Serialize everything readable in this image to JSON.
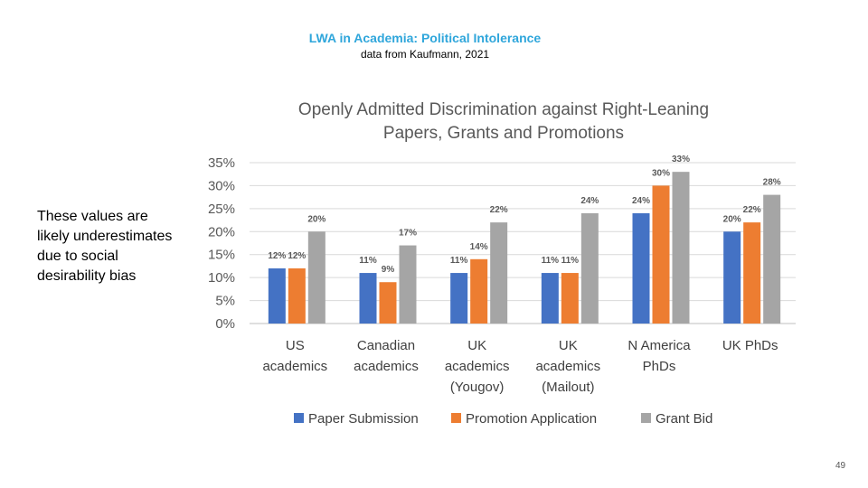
{
  "slide": {
    "title": "LWA in Academia: Political Intolerance",
    "subtitle": "data from Kaufmann, 2021",
    "side_note": "These values are\nlikely underestimates\ndue to social\ndesirability bias",
    "page_number": "49"
  },
  "chart_data": {
    "type": "bar",
    "title": "Openly Admitted Discrimination against Right-Leaning\nPapers, Grants and Promotions",
    "categories": [
      [
        "US",
        "academics"
      ],
      [
        "Canadian",
        "academics"
      ],
      [
        "UK",
        "academics",
        "(Yougov)"
      ],
      [
        "UK",
        "academics",
        "(Mailout)"
      ],
      [
        "N America",
        "PhDs"
      ],
      [
        "UK PhDs"
      ]
    ],
    "series": [
      {
        "name": "Paper Submission",
        "color": "#4472C4",
        "values": [
          12,
          11,
          11,
          11,
          24,
          20
        ]
      },
      {
        "name": "Promotion Application",
        "color": "#ED7D31",
        "values": [
          12,
          9,
          14,
          11,
          30,
          22
        ]
      },
      {
        "name": "Grant Bid",
        "color": "#A5A5A5",
        "values": [
          20,
          17,
          22,
          24,
          33,
          28
        ]
      }
    ],
    "data_label_suffix": "%",
    "ylim": [
      0,
      35
    ],
    "yticks": [
      0,
      5,
      10,
      15,
      20,
      25,
      30,
      35
    ],
    "ytick_labels": [
      "0%",
      "5%",
      "10%",
      "15%",
      "20%",
      "25%",
      "30%",
      "35%"
    ],
    "grid": true,
    "legend_position": "bottom"
  }
}
